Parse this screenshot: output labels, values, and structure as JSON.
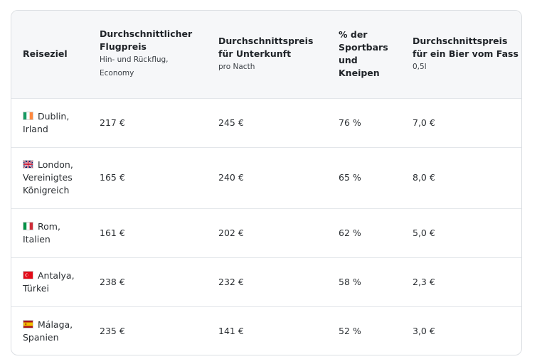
{
  "header": {
    "destination": "Reiseziel",
    "flight_title": "Durchschnittlicher Flugpreis",
    "flight_sub": "Hin- und Rückflug, Economy",
    "lodging_title": "Durchschnittspreis für Unterkunft",
    "lodging_sub": "pro Nacth",
    "bars_title": "% der Sportbars und Kneipen",
    "beer_title": "Durchschnittspreis für ein Bier vom Fass",
    "beer_sub": "0,5l"
  },
  "rows": [
    {
      "flag_icon": "ireland-flag-icon",
      "city": "Dublin,",
      "country": "Irland",
      "flight": "217 €",
      "lodging": "245 €",
      "bars": "76 %",
      "beer": "7,0 €"
    },
    {
      "flag_icon": "uk-flag-icon",
      "city": "London,",
      "country": "Vereinigtes Königreich",
      "flight": "165 €",
      "lodging": "240 €",
      "bars": "65 %",
      "beer": "8,0 €"
    },
    {
      "flag_icon": "italy-flag-icon",
      "city": "Rom,",
      "country": "Italien",
      "flight": "161 €",
      "lodging": "202 €",
      "bars": "62 %",
      "beer": "5,0 €"
    },
    {
      "flag_icon": "turkey-flag-icon",
      "city": "Antalya,",
      "country": "Türkei",
      "flight": "238 €",
      "lodging": "232 €",
      "bars": "58 %",
      "beer": "2,3 €"
    },
    {
      "flag_icon": "spain-flag-icon",
      "city": "Málaga,",
      "country": "Spanien",
      "flight": "235 €",
      "lodging": "141 €",
      "bars": "52 %",
      "beer": "3,0 €"
    }
  ],
  "colors": {
    "header_bg": "#f6f7f9",
    "border": "#dcdfe3"
  }
}
